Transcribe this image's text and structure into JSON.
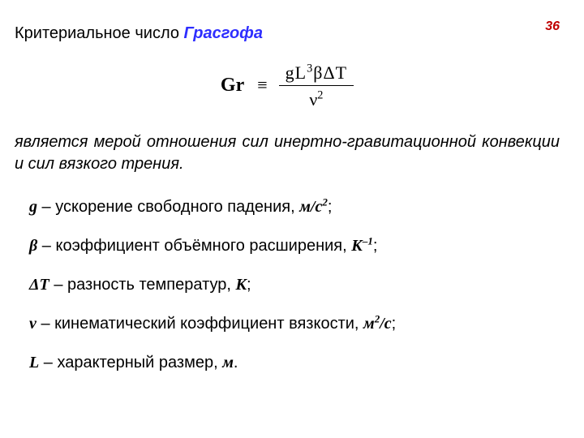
{
  "pageNumber": {
    "value": "36",
    "color": "#c00000"
  },
  "heading": {
    "prefix": "Критериальное число ",
    "term": "Грасгофа",
    "term_color": "#2e2eff"
  },
  "formula": {
    "lhs": "Gr",
    "ident": "≡",
    "num_g": "g",
    "num_L": "L",
    "num_L_exp": "3",
    "num_beta": "β",
    "num_delta": "Δ",
    "num_T": "T",
    "den_nu": "ν",
    "den_nu_exp": "2"
  },
  "description": "является мерой отношения сил инертно-гравитационной конвекции и сил вязкого  трения.",
  "defs": [
    {
      "sym": "g",
      "text": " – ускорение свободного падения, ",
      "unit": "м/с",
      "unit_sup": "2",
      "tail": ";"
    },
    {
      "sym": "β",
      "text": " – коэффициент объёмного расширения, ",
      "unit": "К",
      "unit_sup": "–1",
      "tail": ";"
    },
    {
      "sym": "ΔТ",
      "text": " – разность температур, ",
      "unit": "К",
      "unit_sup": "",
      "tail": ";"
    },
    {
      "sym": "ν",
      "text": " – кинематический коэффициент вязкости, ",
      "unit": "м",
      "unit_sup": "2",
      "unit_tail": "/с",
      "tail": ";"
    },
    {
      "sym": "L",
      "text": " – характерный размер, ",
      "unit": "м",
      "unit_sup": "",
      "tail": "."
    }
  ]
}
